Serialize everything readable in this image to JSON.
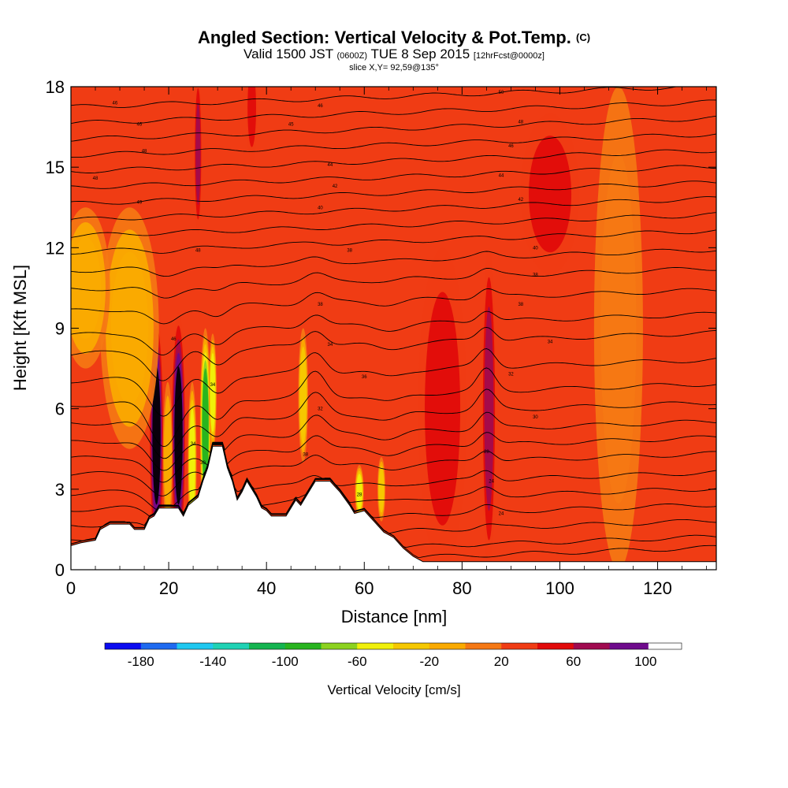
{
  "header": {
    "title": "Angled Section: Vertical Velocity & Pot.Temp.",
    "title_units": "(C)",
    "valid_prefix": "Valid 1500 JST",
    "valid_utc": "(0600Z)",
    "valid_date": "TUE 8 Sep 2015",
    "valid_fcst": "[12hrFcst@0000z]",
    "slice": "slice X,Y= 92,59@135°"
  },
  "colorbar": {
    "label": "Vertical Velocity [cm/s]",
    "tick_labels": [
      "-180",
      "-140",
      "-100",
      "-60",
      "-20",
      "20",
      "60",
      "100"
    ],
    "tick_values": [
      -180,
      -140,
      -100,
      -60,
      -20,
      20,
      60,
      100
    ],
    "bins": [
      -200,
      -180,
      -160,
      -140,
      -120,
      -100,
      -80,
      -60,
      -40,
      -20,
      0,
      20,
      40,
      60,
      80,
      100,
      120
    ],
    "colors": [
      "#0b0bf0",
      "#1e6af0",
      "#1ec8f0",
      "#1ed2b4",
      "#14b450",
      "#28b41e",
      "#8cd21e",
      "#f0f00a",
      "#f5c800",
      "#faaa00",
      "#f57814",
      "#f03c14",
      "#e10a0a",
      "#a00a50",
      "#6e0a8c"
    ]
  },
  "chart_data": {
    "type": "heatmap",
    "title": "Angled Section: Vertical Velocity & Pot.Temp.",
    "xlabel": "Distance [nm]",
    "ylabel": "Height [Kft MSL]",
    "xlim": [
      0,
      132
    ],
    "ylim": [
      0,
      18
    ],
    "x_ticks": [
      0,
      20,
      40,
      60,
      80,
      100,
      120
    ],
    "x_tick_labels": [
      "0",
      "20",
      "40",
      "60",
      "80",
      "100",
      "120"
    ],
    "y_ticks": [
      0,
      3,
      6,
      9,
      12,
      15,
      18
    ],
    "y_tick_labels": [
      "0",
      "3",
      "6",
      "9",
      "12",
      "15",
      "18"
    ],
    "colorbar_label": "Vertical Velocity [cm/s]",
    "background_velocity": 20,
    "terrain": [
      [
        0,
        0.9
      ],
      [
        2,
        1.0
      ],
      [
        5,
        1.1
      ],
      [
        6,
        1.5
      ],
      [
        8,
        1.7
      ],
      [
        12,
        1.7
      ],
      [
        13,
        1.5
      ],
      [
        15,
        1.5
      ],
      [
        16,
        1.9
      ],
      [
        17,
        2.0
      ],
      [
        18,
        2.3
      ],
      [
        22,
        2.3
      ],
      [
        23,
        2.0
      ],
      [
        24,
        2.4
      ],
      [
        26,
        2.7
      ],
      [
        27,
        3.3
      ],
      [
        28,
        3.8
      ],
      [
        29,
        4.6
      ],
      [
        31,
        4.6
      ],
      [
        32,
        3.8
      ],
      [
        33,
        3.3
      ],
      [
        34,
        2.6
      ],
      [
        35,
        2.9
      ],
      [
        36,
        3.3
      ],
      [
        37,
        3.0
      ],
      [
        38,
        2.7
      ],
      [
        39,
        2.3
      ],
      [
        40,
        2.2
      ],
      [
        41,
        2.0
      ],
      [
        44,
        2.0
      ],
      [
        45,
        2.3
      ],
      [
        46,
        2.6
      ],
      [
        47,
        2.4
      ],
      [
        48,
        2.7
      ],
      [
        49,
        3.0
      ],
      [
        50,
        3.3
      ],
      [
        53,
        3.3
      ],
      [
        54,
        3.1
      ],
      [
        55,
        2.9
      ],
      [
        57,
        2.4
      ],
      [
        58,
        2.1
      ],
      [
        60,
        2.2
      ],
      [
        61,
        2.0
      ],
      [
        62,
        1.8
      ],
      [
        63,
        1.6
      ],
      [
        64,
        1.4
      ],
      [
        66,
        1.2
      ],
      [
        68,
        0.8
      ],
      [
        70,
        0.5
      ],
      [
        72,
        0.3
      ],
      [
        80,
        0.3
      ],
      [
        108,
        0.3
      ],
      [
        132,
        0.3
      ]
    ],
    "velocity_features": [
      {
        "x": 17.5,
        "y": 5.0,
        "value": 100,
        "width": 1.5,
        "height": 4.6
      },
      {
        "x": 22.0,
        "y": 5.0,
        "value": 100,
        "width": 1.5,
        "height": 4.6
      },
      {
        "x": 19.8,
        "y": 4.2,
        "value": -20,
        "width": 1.0,
        "height": 2.8
      },
      {
        "x": 27.5,
        "y": 5.2,
        "value": -100,
        "width": 1.1,
        "height": 3.8
      },
      {
        "x": 24.8,
        "y": 4.0,
        "value": -60,
        "width": 0.9,
        "height": 3.0
      },
      {
        "x": 29.0,
        "y": 6.6,
        "value": -60,
        "width": 0.8,
        "height": 2.2
      },
      {
        "x": 85.5,
        "y": 6.0,
        "value": 60,
        "width": 1.5,
        "height": 6.0
      },
      {
        "x": 76.0,
        "y": 6.0,
        "value": 40,
        "width": 5.0,
        "height": 6.0
      },
      {
        "x": 47.5,
        "y": 6.5,
        "value": -40,
        "width": 1.0,
        "height": 2.5
      },
      {
        "x": 59.0,
        "y": 2.9,
        "value": -60,
        "width": 0.9,
        "height": 1.0
      },
      {
        "x": 63.5,
        "y": 3.0,
        "value": -40,
        "width": 0.8,
        "height": 1.2
      },
      {
        "x": 12.0,
        "y": 9.0,
        "value": -20,
        "width": 6.0,
        "height": 4.5
      },
      {
        "x": 3.0,
        "y": 10.5,
        "value": -20,
        "width": 5.0,
        "height": 3.0
      },
      {
        "x": 26.0,
        "y": 15.5,
        "value": 60,
        "width": 0.8,
        "height": 3.0
      },
      {
        "x": 37.0,
        "y": 17.2,
        "value": 40,
        "width": 1.2,
        "height": 2.0
      },
      {
        "x": 112.0,
        "y": 9.0,
        "value": 0,
        "width": 5.0,
        "height": 9.0
      },
      {
        "x": 98.0,
        "y": 14.0,
        "value": 40,
        "width": 6.0,
        "height": 3.0
      }
    ],
    "isentrope_heights": [
      0.4,
      0.8,
      1.4,
      2.0,
      2.6,
      3.2,
      3.9,
      4.5,
      5.1,
      5.8,
      6.5,
      7.4,
      8.4,
      9.1,
      10.0,
      10.8,
      11.5,
      12.2,
      12.8,
      13.4,
      14.0,
      14.6,
      15.2,
      15.8,
      16.4,
      17.0,
      17.6
    ],
    "isentrope_labels": [
      {
        "x": 9,
        "y": 17.4,
        "text": "46"
      },
      {
        "x": 14,
        "y": 16.6,
        "text": "46"
      },
      {
        "x": 15,
        "y": 15.6,
        "text": "48"
      },
      {
        "x": 5,
        "y": 14.6,
        "text": "48"
      },
      {
        "x": 14,
        "y": 13.7,
        "text": "49"
      },
      {
        "x": 26,
        "y": 11.9,
        "text": "48"
      },
      {
        "x": 21,
        "y": 8.6,
        "text": "46"
      },
      {
        "x": 29,
        "y": 6.9,
        "text": "34"
      },
      {
        "x": 25,
        "y": 4.7,
        "text": "34"
      },
      {
        "x": 27,
        "y": 4.0,
        "text": "30"
      },
      {
        "x": 48,
        "y": 4.3,
        "text": "38"
      },
      {
        "x": 51,
        "y": 9.9,
        "text": "38"
      },
      {
        "x": 53,
        "y": 8.4,
        "text": "34"
      },
      {
        "x": 51,
        "y": 6.0,
        "text": "32"
      },
      {
        "x": 57,
        "y": 11.9,
        "text": "38"
      },
      {
        "x": 59,
        "y": 2.8,
        "text": "28"
      },
      {
        "x": 51,
        "y": 17.3,
        "text": "46"
      },
      {
        "x": 45,
        "y": 16.6,
        "text": "45"
      },
      {
        "x": 53,
        "y": 15.1,
        "text": "44"
      },
      {
        "x": 54,
        "y": 14.3,
        "text": "42"
      },
      {
        "x": 51,
        "y": 13.5,
        "text": "40"
      },
      {
        "x": 60,
        "y": 7.2,
        "text": "36"
      },
      {
        "x": 88,
        "y": 17.8,
        "text": "50"
      },
      {
        "x": 92,
        "y": 16.7,
        "text": "48"
      },
      {
        "x": 90,
        "y": 15.8,
        "text": "46"
      },
      {
        "x": 88,
        "y": 14.7,
        "text": "44"
      },
      {
        "x": 92,
        "y": 13.8,
        "text": "42"
      },
      {
        "x": 95,
        "y": 12.0,
        "text": "40"
      },
      {
        "x": 95,
        "y": 11.0,
        "text": "38"
      },
      {
        "x": 92,
        "y": 9.9,
        "text": "38"
      },
      {
        "x": 98,
        "y": 8.5,
        "text": "34"
      },
      {
        "x": 90,
        "y": 7.3,
        "text": "32"
      },
      {
        "x": 95,
        "y": 5.7,
        "text": "30"
      },
      {
        "x": 85,
        "y": 4.4,
        "text": "28"
      },
      {
        "x": 86,
        "y": 3.3,
        "text": "24"
      },
      {
        "x": 88,
        "y": 2.1,
        "text": "24"
      }
    ]
  }
}
